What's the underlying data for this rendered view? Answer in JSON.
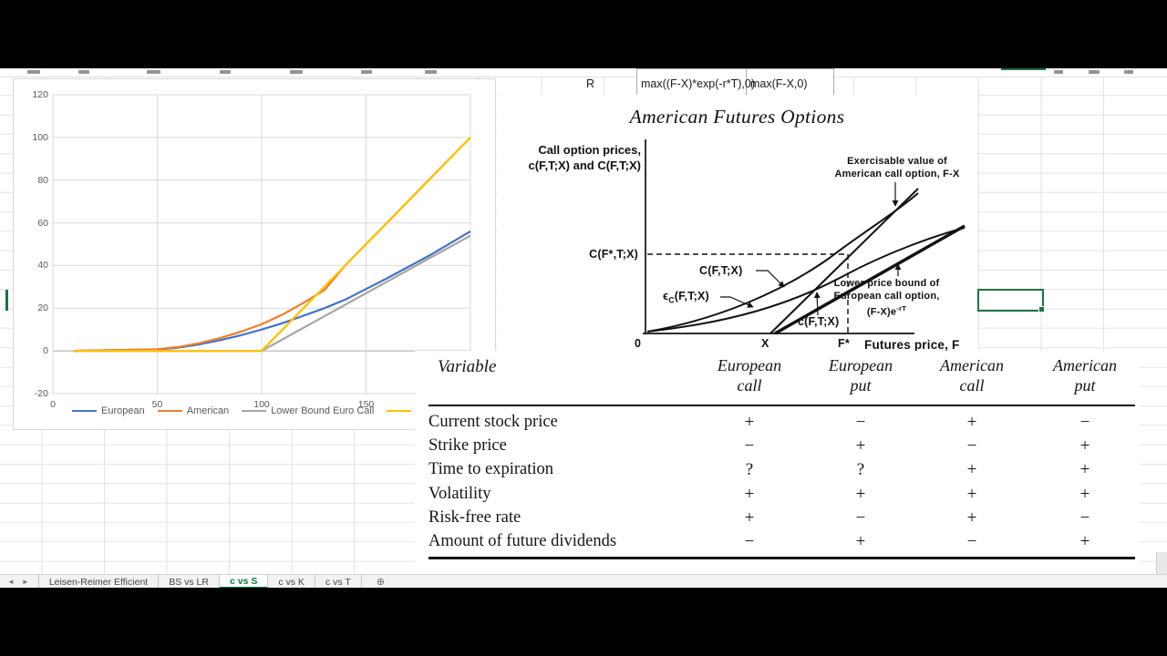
{
  "colors": {
    "excel_green": "#107C41",
    "selection_green": "#1E7145",
    "series": [
      "#4472C4",
      "#ED7D31",
      "#A5A5A5",
      "#FFC000"
    ]
  },
  "top_row": {
    "r_cell": "R",
    "formula_euro": "max((F-X)*exp(-r*T),0)",
    "formula_amer": "max(F-X,0)"
  },
  "chart_data": {
    "type": "line",
    "x": [
      10,
      50,
      60,
      70,
      80,
      90,
      100,
      110,
      120,
      130,
      140,
      160,
      180,
      200
    ],
    "series": [
      {
        "name": "European",
        "values": [
          0,
          0.7,
          1.5,
          3,
          5,
          7.3,
          10,
          13,
          16.5,
          20,
          24,
          34,
          44.5,
          56
        ]
      },
      {
        "name": "American",
        "values": [
          0,
          0.8,
          1.8,
          3.6,
          6,
          9,
          12.5,
          17,
          22.5,
          28.5,
          40,
          60,
          80,
          100
        ]
      },
      {
        "name": "Lower Bound Euro Call",
        "values": [
          0,
          0,
          0,
          0,
          0,
          0,
          0,
          5.4,
          10.8,
          16.2,
          21.6,
          32.4,
          43.2,
          54
        ]
      },
      {
        "name": "",
        "values": [
          0,
          0,
          0,
          0,
          0,
          0,
          0,
          10,
          20,
          30,
          40,
          60,
          80,
          100
        ]
      }
    ],
    "xlim": [
      0,
      200
    ],
    "ylim": [
      -20,
      120
    ],
    "x_ticks": [
      0,
      50,
      100,
      150
    ],
    "y_ticks": [
      120,
      100,
      80,
      60,
      40,
      20,
      0,
      -20
    ],
    "grid": true,
    "legend": [
      "European",
      "American",
      "Lower Bound Euro Call",
      ""
    ],
    "legend_position": "bottom",
    "title": "",
    "xlabel": "",
    "ylabel": ""
  },
  "figure": {
    "title": "American Futures Options",
    "y_axis_label_line1": "Call option prices,",
    "y_axis_label_line2": "c(F,T;X) and C(F,T;X)",
    "x_axis_label": "Futures price,  F",
    "origin_label": "0",
    "x_tick": "X",
    "fstar_tick": "F*",
    "cfstar_label": "C(F*,T;X)",
    "american_curve_label": "C(F,T;X)",
    "epsilon_base": "ϵ",
    "epsilon_sub": "C",
    "epsilon_rest": "(F,T;X)",
    "european_curve_label": "c(F,T;X)",
    "exercisable_note_line1": "Exercisable value of",
    "exercisable_note_line2": "American call option, F-X",
    "lower_note_line1": "Lower price bound of",
    "lower_note_line2": "European call option,",
    "lower_note_base": "(F-X)e",
    "lower_note_sup": "-rT"
  },
  "table": {
    "variable_header": "Variable",
    "column_headers": [
      [
        "European",
        "call"
      ],
      [
        "European",
        "put"
      ],
      [
        "American",
        "call"
      ],
      [
        "American",
        "put"
      ]
    ],
    "rows": [
      {
        "label": "Current stock price",
        "values": [
          "+",
          "−",
          "+",
          "−"
        ]
      },
      {
        "label": "Strike price",
        "values": [
          "−",
          "+",
          "−",
          "+"
        ]
      },
      {
        "label": "Time to expiration",
        "values": [
          "?",
          "?",
          "+",
          "+"
        ]
      },
      {
        "label": "Volatility",
        "values": [
          "+",
          "+",
          "+",
          "+"
        ]
      },
      {
        "label": "Risk-free rate",
        "values": [
          "+",
          "−",
          "+",
          "−"
        ]
      },
      {
        "label": "Amount of future dividends",
        "values": [
          "−",
          "+",
          "−",
          "+"
        ]
      }
    ]
  },
  "sheet_tabs": {
    "nav_left": "◄",
    "nav_right": "►",
    "tabs": [
      "Leisen-Reimer Efficient",
      "BS vs LR",
      "c vs S",
      "c vs K",
      "c vs T"
    ],
    "active": "c vs S",
    "add_sheet": "⊕"
  }
}
